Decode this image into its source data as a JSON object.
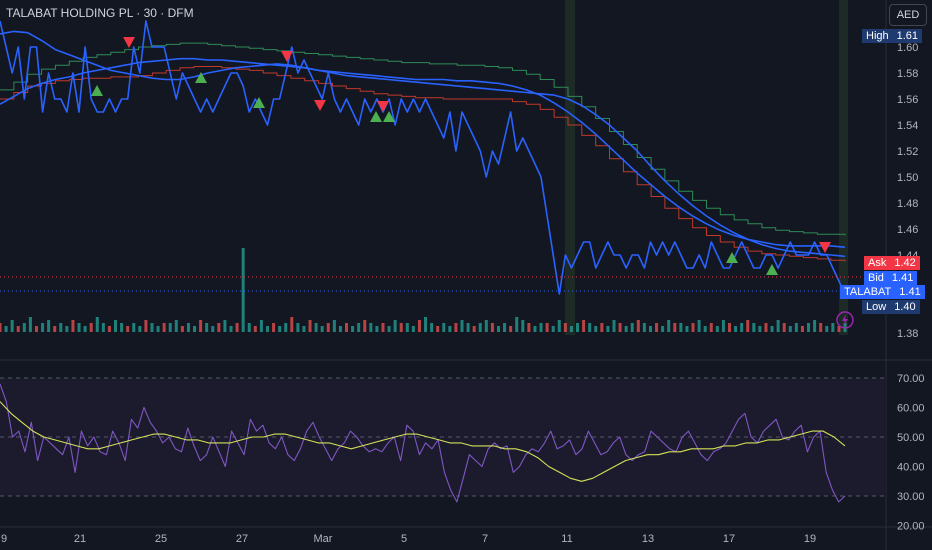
{
  "legend": {
    "symbol_line": "TALABAT HOLDING PL · 30 · DFM"
  },
  "currency_button": "AED",
  "colors": {
    "background": "#131722",
    "price_line": "#2962ff",
    "band_mid": "#2962ff",
    "ma_red": "#c0392b",
    "ma_green": "#2e8b57",
    "vol_up": "#26a69a",
    "vol_down": "#ef5350",
    "rsi": "#7e57c2",
    "rsi_ma": "#d4e157",
    "buy_marker": "#4caf50",
    "sell_marker": "#f23645",
    "session_highlight": "#1e2a25"
  },
  "price_tags": {
    "high": {
      "label": "High",
      "value": "1.61"
    },
    "ask": {
      "label": "Ask",
      "value": "1.42"
    },
    "bid": {
      "label": "Bid",
      "value": "1.41"
    },
    "last": {
      "label": "TALABAT",
      "value": "1.41"
    },
    "low": {
      "label": "Low",
      "value": "1.40"
    }
  },
  "chart_data": [
    {
      "type": "line",
      "x_ticks": [
        "9",
        "21",
        "25",
        "27",
        "Mar",
        "5",
        "7",
        "11",
        "13",
        "17",
        "19"
      ],
      "y_ticks": [
        "1.61",
        "1.60",
        "1.58",
        "1.56",
        "1.54",
        "1.52",
        "1.50",
        "1.48",
        "1.46",
        "1.44",
        "1.38"
      ],
      "ylim": [
        1.374,
        1.627
      ],
      "series": [
        {
          "values": [
            1.62,
            1.6,
            1.58,
            1.6,
            1.56,
            1.6,
            1.6,
            1.55,
            1.58,
            1.56,
            1.56,
            1.55,
            1.58,
            1.55,
            1.6,
            1.56,
            1.55,
            1.55,
            1.56,
            1.55,
            1.56,
            1.56,
            1.6,
            1.58,
            1.62,
            1.6,
            1.6,
            1.6,
            1.58,
            1.56,
            1.58,
            1.57,
            1.56,
            1.55,
            1.56,
            1.55,
            1.56,
            1.57,
            1.58,
            1.58,
            1.57,
            1.55,
            1.56,
            1.55,
            1.54,
            1.56,
            1.56,
            1.58,
            1.6,
            1.58,
            1.59,
            1.58,
            1.57,
            1.56,
            1.58,
            1.56,
            1.55,
            1.56,
            1.55,
            1.54,
            1.56,
            1.55,
            1.56,
            1.55,
            1.56,
            1.54,
            1.56,
            1.55,
            1.56,
            1.55,
            1.56,
            1.55,
            1.54,
            1.53,
            1.55,
            1.52,
            1.55,
            1.54,
            1.53,
            1.52,
            1.5,
            1.52,
            1.51,
            1.53,
            1.55,
            1.52,
            1.53,
            1.52,
            1.51,
            1.5,
            1.47,
            1.44,
            1.41,
            1.44,
            1.43,
            1.44,
            1.45,
            1.45,
            1.43,
            1.44,
            1.45,
            1.44,
            1.44,
            1.43,
            1.44,
            1.44,
            1.43,
            1.45,
            1.44,
            1.45,
            1.44,
            1.45,
            1.44,
            1.43,
            1.43,
            1.44,
            1.43,
            1.45,
            1.44,
            1.43,
            1.43,
            1.44,
            1.45,
            1.44,
            1.43,
            1.43,
            1.44,
            1.44,
            1.43,
            1.44,
            1.45,
            1.44,
            1.44,
            1.44,
            1.45,
            1.44,
            1.44,
            1.43,
            1.42,
            1.41
          ]
        },
        {
          "values": [
            1.61,
            1.612,
            1.611,
            1.605,
            1.598,
            1.594,
            1.59,
            1.586,
            1.582,
            1.58,
            1.578,
            1.576,
            1.575,
            1.575,
            1.577,
            1.58,
            1.582,
            1.584,
            1.585,
            1.586,
            1.587,
            1.586,
            1.584,
            1.582,
            1.58,
            1.578,
            1.577,
            1.576,
            1.575,
            1.574,
            1.573,
            1.572,
            1.571,
            1.57,
            1.569,
            1.568,
            1.567,
            1.566,
            1.565,
            1.564,
            1.563,
            1.56,
            1.555,
            1.548,
            1.54,
            1.53,
            1.52,
            1.508,
            1.497,
            1.487,
            1.478,
            1.47,
            1.463,
            1.457,
            1.452,
            1.448,
            1.445,
            1.443,
            1.442,
            1.441,
            1.44,
            1.439
          ]
        },
        {
          "values": [
            1.56,
            1.565,
            1.57,
            1.572,
            1.574,
            1.575,
            1.576,
            1.576,
            1.577,
            1.577,
            1.578,
            1.58,
            1.582,
            1.584,
            1.585,
            1.585,
            1.584,
            1.583,
            1.582,
            1.58,
            1.578,
            1.576,
            1.574,
            1.572,
            1.57,
            1.568,
            1.566,
            1.564,
            1.563,
            1.562,
            1.561,
            1.561,
            1.56,
            1.56,
            1.56,
            1.56,
            1.56,
            1.558,
            1.556,
            1.552,
            1.546,
            1.54,
            1.532,
            1.524,
            1.514,
            1.504,
            1.494,
            1.485,
            1.476,
            1.468,
            1.461,
            1.455,
            1.45,
            1.446,
            1.443,
            1.441,
            1.44,
            1.439,
            1.438,
            1.437,
            1.436,
            1.435
          ]
        },
        {
          "values": [
            1.556,
            1.562,
            1.568,
            1.572,
            1.575,
            1.577,
            1.58,
            1.582,
            1.584,
            1.586,
            1.588,
            1.589,
            1.59,
            1.591,
            1.591,
            1.59,
            1.59,
            1.589,
            1.588,
            1.587,
            1.586,
            1.585,
            1.584,
            1.582,
            1.581,
            1.58,
            1.579,
            1.578,
            1.577,
            1.576,
            1.575,
            1.575,
            1.575,
            1.574,
            1.574,
            1.573,
            1.572,
            1.57,
            1.567,
            1.563,
            1.557,
            1.55,
            1.542,
            1.533,
            1.523,
            1.513,
            1.503,
            1.494,
            1.485,
            1.477,
            1.47,
            1.464,
            1.459,
            1.455,
            1.452,
            1.45,
            1.448,
            1.447,
            1.447,
            1.447,
            1.447,
            1.446
          ]
        },
        {
          "values": [
            1.567,
            1.573,
            1.579,
            1.583,
            1.586,
            1.589,
            1.592,
            1.594,
            1.596,
            1.598,
            1.6,
            1.601,
            1.602,
            1.603,
            1.603,
            1.602,
            1.601,
            1.6,
            1.599,
            1.598,
            1.597,
            1.596,
            1.595,
            1.594,
            1.593,
            1.592,
            1.591,
            1.59,
            1.589,
            1.588,
            1.588,
            1.587,
            1.587,
            1.586,
            1.586,
            1.585,
            1.584,
            1.582,
            1.579,
            1.575,
            1.569,
            1.562,
            1.554,
            1.545,
            1.535,
            1.525,
            1.515,
            1.506,
            1.497,
            1.489,
            1.482,
            1.476,
            1.471,
            1.467,
            1.464,
            1.461,
            1.459,
            1.458,
            1.457,
            1.456,
            1.456,
            1.455
          ]
        }
      ]
    },
    {
      "type": "bar",
      "series": [
        {
          "values": [
            3,
            2,
            4,
            2,
            3,
            5,
            2,
            3,
            4,
            2,
            3,
            2,
            4,
            3,
            2,
            3,
            5,
            3,
            2,
            4,
            3,
            2,
            3,
            2,
            4,
            3,
            2,
            3,
            3,
            4,
            2,
            3,
            2,
            4,
            3,
            2,
            3,
            4,
            2,
            3,
            28,
            3,
            2,
            4,
            2,
            3,
            2,
            3,
            5,
            3,
            2,
            4,
            3,
            2,
            3,
            4,
            2,
            3,
            2,
            3,
            4,
            3,
            2,
            3,
            2,
            4,
            3,
            3,
            2,
            4,
            5,
            3,
            2,
            3,
            2,
            3,
            4,
            3,
            2,
            3,
            4,
            3,
            2,
            3,
            2,
            5,
            4,
            3,
            2,
            3,
            3,
            2,
            4,
            3,
            2,
            3,
            4,
            3,
            2,
            3,
            2,
            4,
            3,
            2,
            3,
            4,
            3,
            2,
            3,
            2,
            4,
            3,
            3,
            2,
            3,
            4,
            2,
            3,
            2,
            4,
            3,
            2,
            3,
            4,
            3,
            2,
            3,
            2,
            4,
            3,
            2,
            3,
            2,
            3,
            4,
            3,
            2,
            3,
            2,
            3
          ]
        }
      ]
    },
    {
      "type": "line",
      "y_ticks": [
        "70.00",
        "60.00",
        "50.00",
        "40.00",
        "30.00",
        "20.00"
      ],
      "ylim": [
        17.5,
        76.2
      ],
      "series": [
        {
          "values": [
            68,
            62,
            50,
            52,
            45,
            55,
            42,
            50,
            48,
            46,
            44,
            50,
            38,
            52,
            47,
            50,
            45,
            44,
            52,
            48,
            42,
            56,
            53,
            60,
            55,
            52,
            48,
            50,
            46,
            45,
            53,
            47,
            42,
            44,
            50,
            45,
            40,
            52,
            48,
            44,
            56,
            52,
            54,
            48,
            46,
            50,
            44,
            42,
            46,
            52,
            55,
            50,
            46,
            42,
            46,
            48,
            52,
            50,
            47,
            45,
            46,
            45,
            48,
            50,
            42,
            54,
            52,
            44,
            48,
            46,
            49,
            38,
            32,
            28,
            36,
            44,
            42,
            40,
            46,
            48,
            46,
            47,
            38,
            40,
            44,
            46,
            45,
            48,
            52,
            46,
            47,
            49,
            44,
            46,
            52,
            48,
            44,
            45,
            48,
            50,
            44,
            42,
            44,
            45,
            52,
            50,
            48,
            46,
            45,
            50,
            52,
            48,
            44,
            42,
            45,
            46,
            48,
            52,
            56,
            58,
            50,
            48,
            52,
            54,
            56,
            50,
            49,
            52,
            54,
            45,
            50,
            52,
            38,
            32,
            28,
            30
          ]
        },
        {
          "values": [
            62,
            58,
            55,
            52,
            50,
            49,
            48,
            47,
            46,
            46,
            47,
            48,
            49,
            50,
            51,
            51,
            50,
            49,
            49,
            48,
            48,
            48,
            49,
            50,
            50,
            51,
            51,
            50,
            49,
            48,
            48,
            47,
            46,
            47,
            48,
            49,
            50,
            51,
            51,
            50,
            49,
            48,
            48,
            47,
            47,
            47,
            46,
            46,
            45,
            43,
            40,
            38,
            36,
            35,
            36,
            38,
            40,
            42,
            43,
            44,
            44,
            45,
            45,
            46,
            46,
            46,
            47,
            47,
            48,
            48,
            49,
            49,
            50,
            51,
            52,
            52,
            50,
            47
          ]
        }
      ]
    }
  ]
}
